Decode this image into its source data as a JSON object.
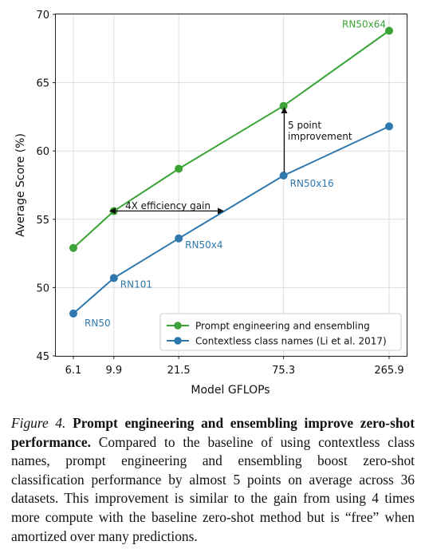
{
  "chart_data": {
    "type": "line",
    "xlabel": "Model GFLOPs",
    "ylabel": "Average Score (%)",
    "x_tick_labels": [
      "6.1",
      "9.9",
      "21.5",
      "75.3",
      "265.9"
    ],
    "x": [
      6.1,
      9.9,
      21.5,
      75.3,
      265.9
    ],
    "x_scale": "log",
    "ylim": [
      45,
      70
    ],
    "y_ticks": [
      45,
      50,
      55,
      60,
      65,
      70
    ],
    "grid": true,
    "legend_position": "lower-right",
    "series": [
      {
        "name": "Prompt engineering and ensembling",
        "color": "#3aa335",
        "values": [
          52.9,
          55.6,
          58.7,
          63.3,
          68.8
        ]
      },
      {
        "name": "Contextless class names (Li et al. 2017)",
        "color": "#2e78ad",
        "values": [
          48.1,
          50.7,
          53.6,
          58.2,
          61.8
        ]
      }
    ],
    "point_labels": [
      "RN50",
      "RN101",
      "RN50x4",
      "RN50x16",
      "RN50x64"
    ],
    "annotations": {
      "efficiency_gain": "4X efficiency gain",
      "improvement_line1": "5 point",
      "improvement_line2": "improvement"
    }
  },
  "caption": {
    "figure_label": "Figure 4.",
    "bold_text": "Prompt engineering and ensembling improve zero-shot performance.",
    "body_text": "Compared to the baseline of using contextless class names, prompt engineering and ensembling boost zero-shot classification performance by almost 5 points on average across 36 datasets. This improvement is similar to the gain from using 4 times more compute with the baseline zero-shot method but is “free” when amortized over many predictions."
  }
}
